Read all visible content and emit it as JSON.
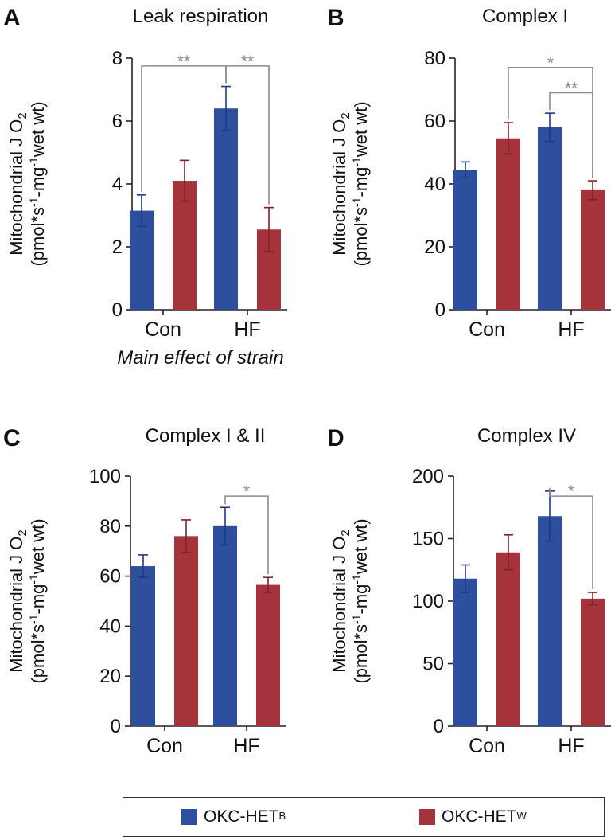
{
  "colors": {
    "series_b": "#2E4F9E",
    "series_w": "#A5333B",
    "sig": "#8C8C8C",
    "axis": "#222222"
  },
  "y_axis_label": {
    "line1": "Mitochondrial J O",
    "o2_sub": "2",
    "line2_a": "(pmol*s",
    "neg1": "-1",
    "line2_b": "-mg",
    "line2_c": "wet wt)"
  },
  "legend": {
    "b_label": "OKC-HET",
    "b_sup": "B",
    "w_label": "OKC-HET",
    "w_sup": "W"
  },
  "chart_data": [
    {
      "type": "bar",
      "panel_letter": "A",
      "title": "Leak respiration",
      "categories": [
        "Con",
        "HF"
      ],
      "series": [
        {
          "name": "OKC-HETB",
          "values": [
            3.15,
            6.4
          ],
          "errors": [
            0.5,
            0.7
          ]
        },
        {
          "name": "OKC-HETW",
          "values": [
            4.1,
            2.55
          ],
          "errors": [
            0.65,
            0.7
          ]
        }
      ],
      "ylim": [
        0,
        8
      ],
      "yticks": [
        0,
        2,
        4,
        6,
        8
      ],
      "annotation": "Main effect of strain",
      "significance": [
        {
          "from": [
            0,
            0
          ],
          "to": [
            1,
            0
          ],
          "label": "**",
          "bar_y": 7.75
        },
        {
          "from": [
            1,
            0
          ],
          "to": [
            1,
            1
          ],
          "label": "**",
          "bar_y": 7.75
        }
      ]
    },
    {
      "type": "bar",
      "panel_letter": "B",
      "title": "Complex I",
      "categories": [
        "Con",
        "HF"
      ],
      "series": [
        {
          "name": "OKC-HETB",
          "values": [
            44.5,
            58
          ],
          "errors": [
            2.5,
            4.5
          ]
        },
        {
          "name": "OKC-HETW",
          "values": [
            54.5,
            38
          ],
          "errors": [
            5,
            3
          ]
        }
      ],
      "ylim": [
        0,
        80
      ],
      "yticks": [
        0,
        20,
        40,
        60,
        80
      ],
      "annotation": "",
      "significance": [
        {
          "from": [
            0,
            1
          ],
          "to": [
            1,
            1
          ],
          "label": "*",
          "bar_y": 77
        },
        {
          "from": [
            1,
            0
          ],
          "to": [
            1,
            1
          ],
          "label": "**",
          "bar_y": 69
        }
      ]
    },
    {
      "type": "bar",
      "panel_letter": "C",
      "title": "Complex I & II",
      "categories": [
        "Con",
        "HF"
      ],
      "series": [
        {
          "name": "OKC-HETB",
          "values": [
            64,
            80
          ],
          "errors": [
            4.5,
            7.5
          ]
        },
        {
          "name": "OKC-HETW",
          "values": [
            76,
            56.5
          ],
          "errors": [
            6.5,
            3
          ]
        }
      ],
      "ylim": [
        0,
        100
      ],
      "yticks": [
        0,
        20,
        40,
        60,
        80,
        100
      ],
      "annotation": "",
      "significance": [
        {
          "from": [
            1,
            0
          ],
          "to": [
            1,
            1
          ],
          "label": "*",
          "bar_y": 92
        }
      ]
    },
    {
      "type": "bar",
      "panel_letter": "D",
      "title": "Complex IV",
      "categories": [
        "Con",
        "HF"
      ],
      "series": [
        {
          "name": "OKC-HETB",
          "values": [
            118,
            168
          ],
          "errors": [
            11,
            20
          ]
        },
        {
          "name": "OKC-HETW",
          "values": [
            139,
            102
          ],
          "errors": [
            14,
            5
          ]
        }
      ],
      "ylim": [
        0,
        200
      ],
      "yticks": [
        0,
        50,
        100,
        150,
        200
      ],
      "annotation": "",
      "significance": [
        {
          "from": [
            1,
            0
          ],
          "to": [
            1,
            1
          ],
          "label": "*",
          "bar_y": 184
        }
      ]
    }
  ]
}
